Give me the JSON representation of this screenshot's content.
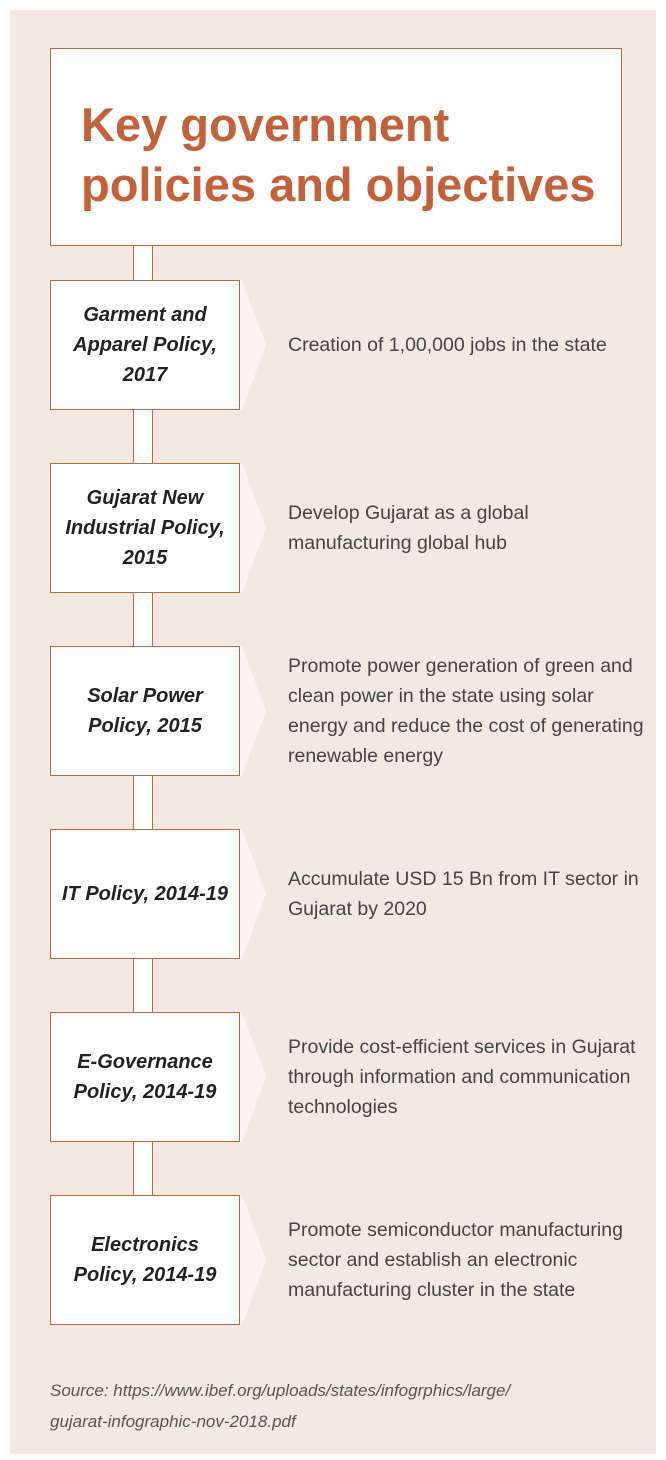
{
  "title": "Key government policies and objectives",
  "policies": [
    {
      "name": "Garment and Apparel Policy, 2017",
      "objective": "Creation of 1,00,000 jobs in the state"
    },
    {
      "name": "Gujarat New Industrial Policy, 2015",
      "objective": "Develop Gujarat as a global manufacturing global hub"
    },
    {
      "name": "Solar Power Policy, 2015",
      "objective": "Promote power generation of green and clean power in the state using solar energy and reduce the cost of generating renewable energy"
    },
    {
      "name": "IT Policy, 2014-19",
      "objective": "Accumulate USD 15 Bn from IT sector in Gujarat by 2020"
    },
    {
      "name": "E-Governance Policy, 2014-19",
      "objective": "Provide cost-efficient services in Gujarat through information and communication technologies"
    },
    {
      "name": "Electronics Policy, 2014-19",
      "objective": "Promote semiconductor manufacturing sector and establish an electronic manufacturing cluster in the state"
    }
  ],
  "source_lines": [
    "Source: https://www.ibef.org/uploads/states/infogrphics/large/",
    "gujarat-infographic-nov-2018.pdf"
  ]
}
